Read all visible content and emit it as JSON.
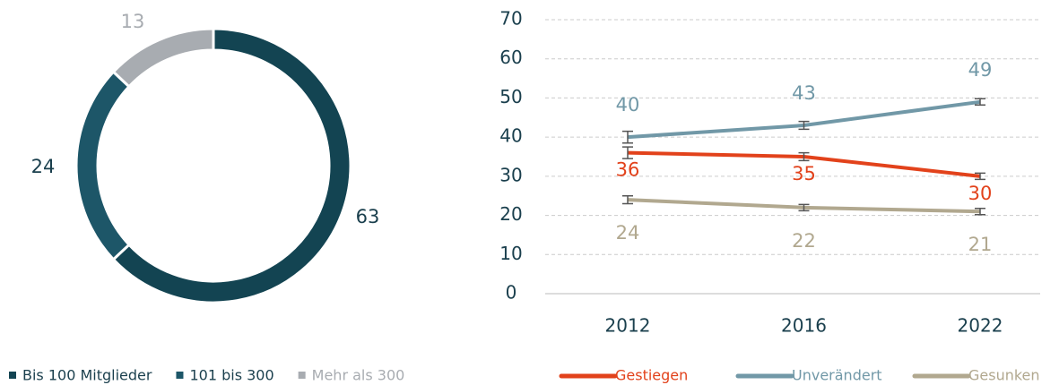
{
  "chart_data": [
    {
      "type": "donut",
      "categories": [
        "Bis 100 Mitglieder",
        "101 bis 300",
        "Mehr als 300"
      ],
      "values": [
        63,
        24,
        13
      ],
      "colors": [
        "#134452",
        "#1d5668",
        "#a8acb1"
      ],
      "legend": "bottom-left"
    },
    {
      "type": "line",
      "categories": [
        "2012",
        "2016",
        "2022"
      ],
      "series": [
        {
          "name": "Gestiegen",
          "color": "#e2421b",
          "values": [
            36,
            35,
            30
          ],
          "errors": [
            1.5,
            1,
            0.8
          ]
        },
        {
          "name": "Unverändert",
          "color": "#7198a7",
          "values": [
            40,
            43,
            49
          ],
          "errors": [
            1.5,
            1,
            0.8
          ]
        },
        {
          "name": "Gesunken",
          "color": "#b1a88f",
          "values": [
            24,
            22,
            21
          ],
          "errors": [
            1,
            0.8,
            0.8
          ]
        }
      ],
      "ylim": [
        0,
        70
      ],
      "yticks": [
        0,
        10,
        20,
        30,
        40,
        50,
        60,
        70
      ],
      "grid": true,
      "legend": "bottom"
    }
  ]
}
